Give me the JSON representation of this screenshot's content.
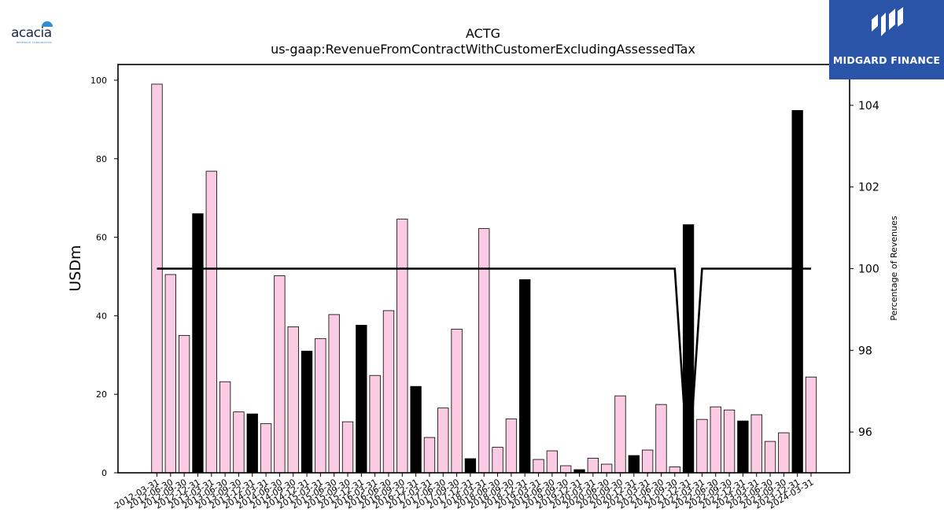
{
  "brand_left": {
    "name": "acacia",
    "tagline": "RESEARCH CORPORATION"
  },
  "brand_right": {
    "name": "MIDGARD FINANCE"
  },
  "chart_data": {
    "type": "bar",
    "title": "ACTG",
    "subtitle": "us-gaap:RevenueFromContractWithCustomerExcludingAssessedTax",
    "ylabel": "USDm",
    "y2label": "Percentage of Revenues",
    "ylim": [
      0,
      104
    ],
    "y2lim": [
      95,
      105
    ],
    "yticks": [
      0,
      20,
      40,
      60,
      80,
      100
    ],
    "y2ticks": [
      96,
      98,
      100,
      102,
      104
    ],
    "grid": false,
    "categories": [
      "2012-03-31",
      "2012-06-30",
      "2012-09-30",
      "2012-12-31",
      "2013-03-31",
      "2013-06-30",
      "2013-09-30",
      "2013-12-31",
      "2014-03-31",
      "2014-06-30",
      "2014-09-30",
      "2014-12-31",
      "2015-03-31",
      "2015-06-30",
      "2015-09-30",
      "2015-12-31",
      "2016-03-31",
      "2016-06-30",
      "2016-09-30",
      "2016-12-31",
      "2017-03-31",
      "2017-06-30",
      "2017-09-30",
      "2017-12-31",
      "2018-03-31",
      "2018-06-30",
      "2018-09-30",
      "2018-12-31",
      "2019-03-31",
      "2019-06-30",
      "2019-09-30",
      "2019-12-31",
      "2020-03-31",
      "2020-06-30",
      "2020-09-30",
      "2020-12-31",
      "2021-03-31",
      "2021-06-30",
      "2021-09-30",
      "2021-12-31",
      "2022-03-31",
      "2022-06-30",
      "2022-09-30",
      "2022-12-31",
      "2023-03-31",
      "2023-06-30",
      "2023-09-30",
      "2023-12-31",
      "2024-03-31"
    ],
    "values": [
      99,
      50.5,
      35,
      66,
      76.8,
      23.2,
      15.5,
      15,
      12.5,
      50.2,
      37.2,
      31,
      34.2,
      40.3,
      13,
      37.6,
      24.8,
      41.3,
      64.6,
      22,
      9,
      16.5,
      36.6,
      3.6,
      62.2,
      6.5,
      13.7,
      49.2,
      3.4,
      5.6,
      1.8,
      0.8,
      3.7,
      2.2,
      19.6,
      4.4,
      5.8,
      17.4,
      1.5,
      63.2,
      13.6,
      16.8,
      16,
      13.2,
      14.8,
      8,
      10.2,
      92.3,
      24.4
    ],
    "highlight": [
      false,
      false,
      false,
      true,
      false,
      false,
      false,
      true,
      false,
      false,
      false,
      true,
      false,
      false,
      false,
      true,
      false,
      false,
      false,
      true,
      false,
      false,
      false,
      true,
      false,
      false,
      false,
      true,
      false,
      false,
      false,
      true,
      false,
      false,
      false,
      true,
      false,
      false,
      false,
      true,
      false,
      false,
      false,
      true,
      false,
      false,
      false,
      true,
      false
    ],
    "line": {
      "values": [
        100,
        100,
        100,
        100,
        100,
        100,
        100,
        100,
        100,
        100,
        100,
        100,
        100,
        100,
        100,
        100,
        100,
        100,
        100,
        100,
        100,
        100,
        100,
        100,
        100,
        100,
        100,
        100,
        100,
        100,
        100,
        100,
        100,
        100,
        100,
        100,
        100,
        100,
        100,
        95,
        100,
        100,
        100,
        100,
        100,
        100,
        100,
        100,
        100
      ],
      "color": "#000000"
    },
    "colors": {
      "bar": "#fbcbe3",
      "highlight_bar": "#000000",
      "edge": "#000000"
    }
  }
}
